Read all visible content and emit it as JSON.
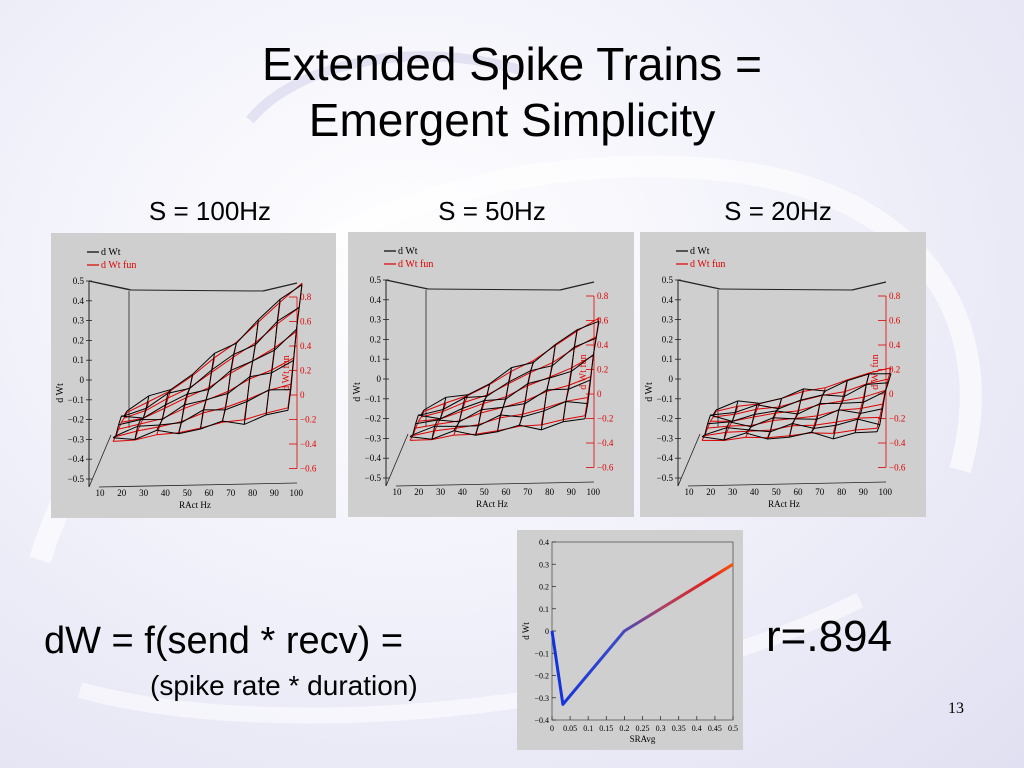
{
  "slide": {
    "title_line1": "Extended Spike Trains =",
    "title_line2": "Emergent Simplicity",
    "formula_main": "dW = f(send * recv) =",
    "formula_sub": "(spike rate * duration)",
    "correlation": "r=.894",
    "page_number": "13"
  },
  "colors": {
    "black_series": "#000000",
    "red_series": "#e00000"
  },
  "chart_data": [
    {
      "type": "surface",
      "subtitle": "S = 100Hz",
      "legend": [
        "d Wt",
        "d Wt fun"
      ],
      "xlabel": "RAct Hz",
      "ylabel_left": "d Wt",
      "ylabel_right": "d Wt fun",
      "x_ticks": [
        "10",
        "20",
        "30",
        "40",
        "50",
        "60",
        "70",
        "80",
        "90",
        "100"
      ],
      "left_ticks": [
        "0.5",
        "0.4",
        "0.3",
        "0.2",
        "0.1",
        "0",
        "−0.1",
        "−0.2",
        "−0.3",
        "−0.4",
        "−0.5"
      ],
      "right_ticks": [
        "0.8",
        "0.6",
        "0.4",
        "0.2",
        "0",
        "−0.2",
        "−0.4",
        "−0.6"
      ]
    },
    {
      "type": "surface",
      "subtitle": "S = 50Hz",
      "legend": [
        "d Wt",
        "d Wt fun"
      ],
      "xlabel": "RAct Hz",
      "ylabel_left": "d Wt",
      "ylabel_right": "d Wt fun",
      "x_ticks": [
        "10",
        "20",
        "30",
        "40",
        "50",
        "60",
        "70",
        "80",
        "90",
        "100"
      ],
      "left_ticks": [
        "0.5",
        "0.4",
        "0.3",
        "0.2",
        "0.1",
        "0",
        "−0.1",
        "−0.2",
        "−0.3",
        "−0.4",
        "−0.5"
      ],
      "right_ticks": [
        "0.8",
        "0.6",
        "0.4",
        "0.2",
        "0",
        "−0.2",
        "−0.4",
        "−0.6"
      ]
    },
    {
      "type": "surface",
      "subtitle": "S = 20Hz",
      "legend": [
        "d Wt",
        "d Wt fun"
      ],
      "xlabel": "RAct Hz",
      "ylabel_left": "d Wt",
      "ylabel_right": "d Wt fun",
      "x_ticks": [
        "10",
        "20",
        "30",
        "40",
        "50",
        "60",
        "70",
        "80",
        "90",
        "100"
      ],
      "left_ticks": [
        "0.5",
        "0.4",
        "0.3",
        "0.2",
        "0.1",
        "0",
        "−0.1",
        "−0.2",
        "−0.3",
        "−0.4",
        "−0.5"
      ],
      "right_ticks": [
        "0.8",
        "0.6",
        "0.4",
        "0.2",
        "0",
        "−0.2",
        "−0.4",
        "−0.6"
      ]
    },
    {
      "type": "line",
      "xlabel": "SRAvg",
      "ylabel": "d Wt",
      "x_ticks": [
        "0",
        "0.05",
        "0.1",
        "0.15",
        "0.2",
        "0.25",
        "0.3",
        "0.35",
        "0.4",
        "0.45",
        "0.5"
      ],
      "y_ticks": [
        "0.4",
        "0.3",
        "0.2",
        "0.1",
        "0",
        "−0.1",
        "−0.2",
        "−0.3",
        "−0.4"
      ],
      "xlim": [
        0,
        0.5
      ],
      "ylim": [
        -0.4,
        0.4
      ],
      "x": [
        0,
        0.03,
        0.2,
        0.5
      ],
      "y": [
        0,
        -0.33,
        0,
        0.3
      ]
    }
  ]
}
